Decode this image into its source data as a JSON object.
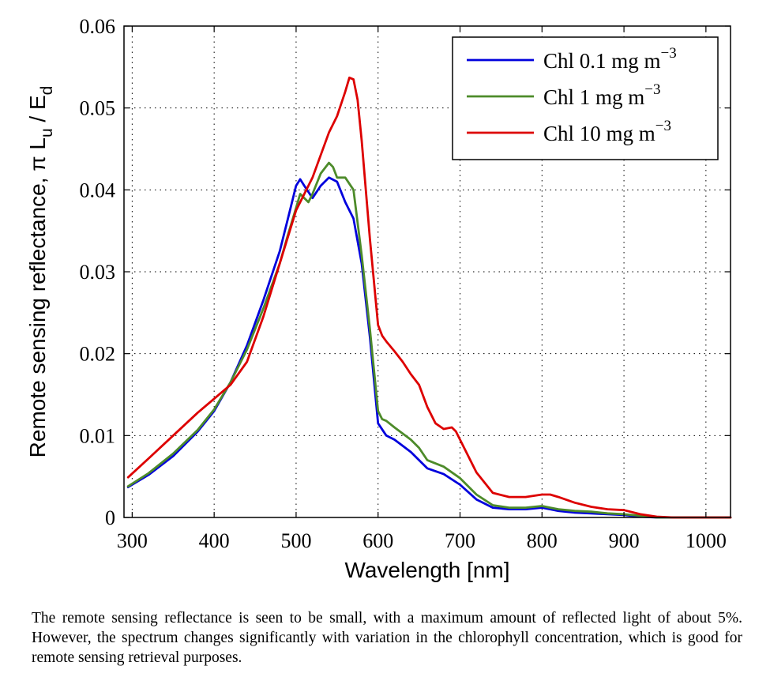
{
  "chart_data": {
    "type": "line",
    "xlabel": "Wavelength [nm]",
    "ylabel": "Remote sensing reflectance, π L",
    "ylabel_sub1": "u",
    "ylabel_mid": " / E",
    "ylabel_sub2": "d",
    "xlim": [
      290,
      1030
    ],
    "ylim": [
      0,
      0.06
    ],
    "x_ticks": [
      300,
      400,
      500,
      600,
      700,
      800,
      900,
      1000
    ],
    "x_tick_labels": [
      "300",
      "400",
      "500",
      "600",
      "700",
      "800",
      "900",
      "1000"
    ],
    "y_ticks": [
      0,
      0.01,
      0.02,
      0.03,
      0.04,
      0.05,
      0.06
    ],
    "y_tick_labels": [
      "0",
      "0.01",
      "0.02",
      "0.03",
      "0.04",
      "0.05",
      "0.06"
    ],
    "grid": true,
    "legend_position": "top-right",
    "series": [
      {
        "name": "Chl 0.1 mg m",
        "name_sup": "−3",
        "color": "#0000dd",
        "x": [
          295,
          320,
          350,
          380,
          400,
          420,
          440,
          460,
          480,
          490,
          500,
          505,
          510,
          520,
          530,
          540,
          550,
          560,
          570,
          580,
          590,
          600,
          610,
          620,
          640,
          660,
          680,
          700,
          720,
          740,
          760,
          780,
          800,
          810,
          820,
          840,
          860,
          880,
          900,
          920,
          940,
          960,
          1000,
          1030
        ],
        "y": [
          0.0037,
          0.0052,
          0.0075,
          0.0105,
          0.013,
          0.0165,
          0.021,
          0.0265,
          0.0325,
          0.0365,
          0.0405,
          0.0413,
          0.0405,
          0.039,
          0.0405,
          0.0415,
          0.041,
          0.0385,
          0.0365,
          0.031,
          0.022,
          0.0115,
          0.01,
          0.0095,
          0.008,
          0.006,
          0.0053,
          0.004,
          0.0022,
          0.0012,
          0.001,
          0.001,
          0.0012,
          0.001,
          0.0008,
          0.0006,
          0.0005,
          0.0004,
          0.0003,
          0.0001,
          0.0,
          0.0,
          0.0,
          0.0
        ]
      },
      {
        "name": "Chl 1 mg m",
        "name_sup": "−3",
        "color": "#4d8b2a",
        "x": [
          295,
          320,
          350,
          380,
          400,
          420,
          440,
          460,
          480,
          490,
          500,
          505,
          510,
          515,
          520,
          530,
          540,
          545,
          550,
          560,
          570,
          580,
          590,
          600,
          605,
          610,
          620,
          640,
          650,
          660,
          680,
          700,
          720,
          740,
          760,
          780,
          800,
          810,
          820,
          840,
          860,
          880,
          900,
          920,
          940,
          960,
          1000,
          1030
        ],
        "y": [
          0.0038,
          0.0054,
          0.0078,
          0.0107,
          0.0132,
          0.0165,
          0.0205,
          0.0255,
          0.031,
          0.0345,
          0.0378,
          0.0395,
          0.039,
          0.0385,
          0.0395,
          0.042,
          0.0433,
          0.0428,
          0.0415,
          0.0415,
          0.04,
          0.032,
          0.023,
          0.013,
          0.012,
          0.0118,
          0.011,
          0.0095,
          0.0085,
          0.007,
          0.0062,
          0.0048,
          0.0028,
          0.0015,
          0.0012,
          0.0012,
          0.0014,
          0.0012,
          0.001,
          0.0008,
          0.0007,
          0.0005,
          0.0004,
          0.0002,
          0.0,
          0.0,
          0.0,
          0.0
        ]
      },
      {
        "name": "Chl 10 mg m",
        "name_sup": "−3",
        "color": "#dd0000",
        "x": [
          295,
          320,
          350,
          380,
          400,
          420,
          440,
          460,
          480,
          500,
          520,
          540,
          550,
          560,
          565,
          570,
          575,
          580,
          590,
          600,
          605,
          610,
          620,
          630,
          640,
          650,
          660,
          670,
          680,
          690,
          695,
          700,
          720,
          740,
          760,
          780,
          800,
          810,
          820,
          840,
          860,
          880,
          900,
          920,
          940,
          960,
          1000,
          1030
        ],
        "y": [
          0.0049,
          0.0072,
          0.01,
          0.0128,
          0.0145,
          0.0162,
          0.019,
          0.0245,
          0.031,
          0.0375,
          0.0415,
          0.047,
          0.049,
          0.052,
          0.0537,
          0.0535,
          0.051,
          0.046,
          0.034,
          0.0235,
          0.0222,
          0.0215,
          0.0203,
          0.019,
          0.0175,
          0.0162,
          0.0135,
          0.0115,
          0.0108,
          0.011,
          0.0105,
          0.0095,
          0.0055,
          0.003,
          0.0025,
          0.0025,
          0.0028,
          0.0028,
          0.0025,
          0.0018,
          0.0013,
          0.001,
          0.0009,
          0.0004,
          0.0001,
          0.0,
          0.0,
          0.0
        ]
      }
    ]
  },
  "caption": "The remote sensing reflectance is seen to be small, with a maximum amount of reflected light of about 5%.  However, the spectrum changes significantly with variation in the chlorophyll concentration, which is good for remote sensing retrieval purposes."
}
